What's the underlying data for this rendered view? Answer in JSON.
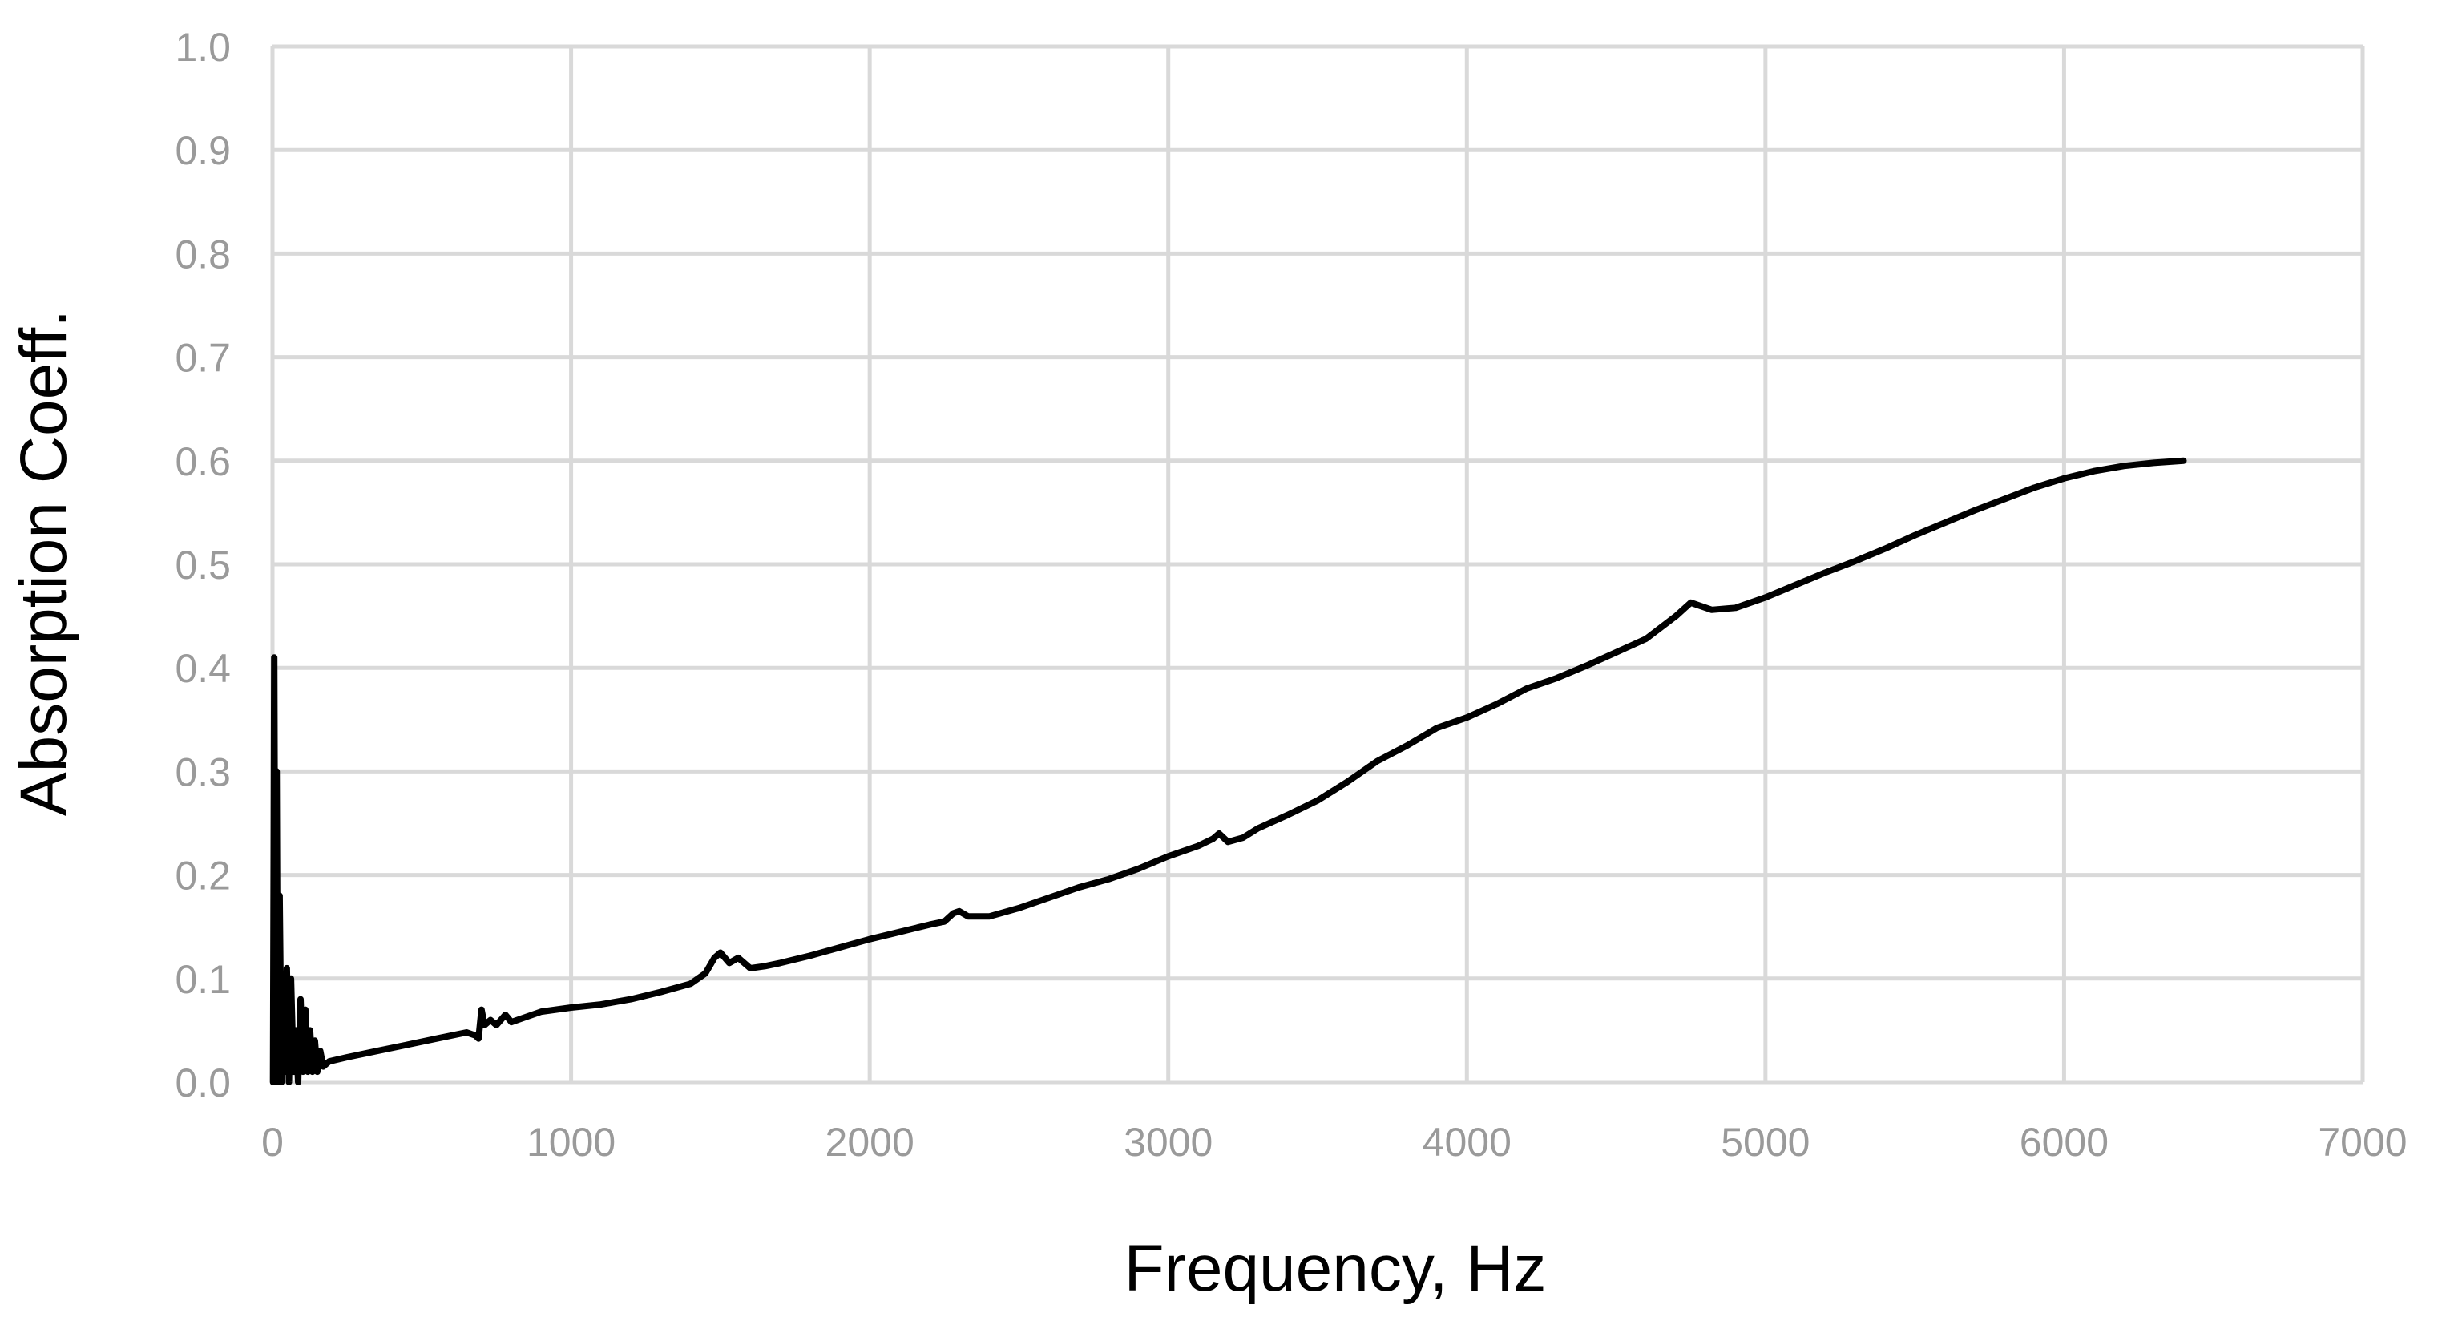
{
  "chart_data": {
    "type": "line",
    "title": "",
    "xlabel": "Frequency, Hz",
    "ylabel": "Absorption Coeff.",
    "xlim": [
      0,
      7000
    ],
    "ylim": [
      0.0,
      1.0
    ],
    "grid": true,
    "legend": "none",
    "line_color": "#000000",
    "grid_color": "#d9d9d9",
    "tick_color": "#9a9a9a",
    "x_ticks": [
      {
        "value": 0,
        "label": "0"
      },
      {
        "value": 1000,
        "label": "1000"
      },
      {
        "value": 2000,
        "label": "2000"
      },
      {
        "value": 3000,
        "label": "3000"
      },
      {
        "value": 4000,
        "label": "4000"
      },
      {
        "value": 5000,
        "label": "5000"
      },
      {
        "value": 6000,
        "label": "6000"
      },
      {
        "value": 7000,
        "label": "7000"
      }
    ],
    "y_ticks": [
      {
        "value": 0.0,
        "label": "0.0"
      },
      {
        "value": 0.1,
        "label": "0.1"
      },
      {
        "value": 0.2,
        "label": "0.2"
      },
      {
        "value": 0.3,
        "label": "0.3"
      },
      {
        "value": 0.4,
        "label": "0.4"
      },
      {
        "value": 0.5,
        "label": "0.5"
      },
      {
        "value": 0.6,
        "label": "0.6"
      },
      {
        "value": 0.7,
        "label": "0.7"
      },
      {
        "value": 0.8,
        "label": "0.8"
      },
      {
        "value": 0.9,
        "label": "0.9"
      },
      {
        "value": 1.0,
        "label": "1.0"
      }
    ],
    "series": [
      {
        "points": [
          [
            2,
            0.0
          ],
          [
            6,
            0.41
          ],
          [
            10,
            0.0
          ],
          [
            14,
            0.3
          ],
          [
            18,
            0.0
          ],
          [
            24,
            0.18
          ],
          [
            30,
            0.0
          ],
          [
            36,
            0.1
          ],
          [
            42,
            0.01
          ],
          [
            48,
            0.11
          ],
          [
            55,
            0.0
          ],
          [
            62,
            0.1
          ],
          [
            70,
            0.01
          ],
          [
            78,
            0.05
          ],
          [
            86,
            0.0
          ],
          [
            94,
            0.08
          ],
          [
            102,
            0.01
          ],
          [
            110,
            0.07
          ],
          [
            118,
            0.01
          ],
          [
            126,
            0.05
          ],
          [
            134,
            0.01
          ],
          [
            142,
            0.04
          ],
          [
            150,
            0.01
          ],
          [
            160,
            0.03
          ],
          [
            170,
            0.015
          ],
          [
            190,
            0.02
          ],
          [
            250,
            0.024
          ],
          [
            350,
            0.03
          ],
          [
            450,
            0.036
          ],
          [
            550,
            0.042
          ],
          [
            650,
            0.048
          ],
          [
            680,
            0.045
          ],
          [
            690,
            0.042
          ],
          [
            700,
            0.07
          ],
          [
            710,
            0.055
          ],
          [
            730,
            0.06
          ],
          [
            750,
            0.055
          ],
          [
            780,
            0.065
          ],
          [
            800,
            0.058
          ],
          [
            850,
            0.063
          ],
          [
            900,
            0.068
          ],
          [
            1000,
            0.072
          ],
          [
            1100,
            0.075
          ],
          [
            1200,
            0.08
          ],
          [
            1300,
            0.087
          ],
          [
            1400,
            0.095
          ],
          [
            1450,
            0.105
          ],
          [
            1480,
            0.12
          ],
          [
            1500,
            0.125
          ],
          [
            1530,
            0.115
          ],
          [
            1560,
            0.12
          ],
          [
            1600,
            0.11
          ],
          [
            1650,
            0.112
          ],
          [
            1700,
            0.115
          ],
          [
            1800,
            0.122
          ],
          [
            1900,
            0.13
          ],
          [
            2000,
            0.138
          ],
          [
            2100,
            0.145
          ],
          [
            2200,
            0.152
          ],
          [
            2250,
            0.155
          ],
          [
            2280,
            0.163
          ],
          [
            2300,
            0.165
          ],
          [
            2330,
            0.16
          ],
          [
            2400,
            0.16
          ],
          [
            2500,
            0.168
          ],
          [
            2600,
            0.178
          ],
          [
            2700,
            0.188
          ],
          [
            2800,
            0.196
          ],
          [
            2900,
            0.206
          ],
          [
            3000,
            0.218
          ],
          [
            3100,
            0.228
          ],
          [
            3150,
            0.235
          ],
          [
            3170,
            0.24
          ],
          [
            3200,
            0.232
          ],
          [
            3250,
            0.236
          ],
          [
            3300,
            0.245
          ],
          [
            3400,
            0.258
          ],
          [
            3500,
            0.272
          ],
          [
            3600,
            0.29
          ],
          [
            3700,
            0.31
          ],
          [
            3800,
            0.325
          ],
          [
            3900,
            0.342
          ],
          [
            4000,
            0.352
          ],
          [
            4100,
            0.365
          ],
          [
            4200,
            0.38
          ],
          [
            4300,
            0.39
          ],
          [
            4400,
            0.402
          ],
          [
            4500,
            0.415
          ],
          [
            4600,
            0.428
          ],
          [
            4700,
            0.45
          ],
          [
            4750,
            0.463
          ],
          [
            4780,
            0.46
          ],
          [
            4820,
            0.456
          ],
          [
            4900,
            0.458
          ],
          [
            5000,
            0.468
          ],
          [
            5100,
            0.48
          ],
          [
            5200,
            0.492
          ],
          [
            5300,
            0.503
          ],
          [
            5400,
            0.515
          ],
          [
            5500,
            0.528
          ],
          [
            5600,
            0.54
          ],
          [
            5700,
            0.552
          ],
          [
            5800,
            0.563
          ],
          [
            5900,
            0.574
          ],
          [
            6000,
            0.583
          ],
          [
            6100,
            0.59
          ],
          [
            6200,
            0.595
          ],
          [
            6300,
            0.598
          ],
          [
            6400,
            0.6
          ]
        ]
      }
    ]
  }
}
